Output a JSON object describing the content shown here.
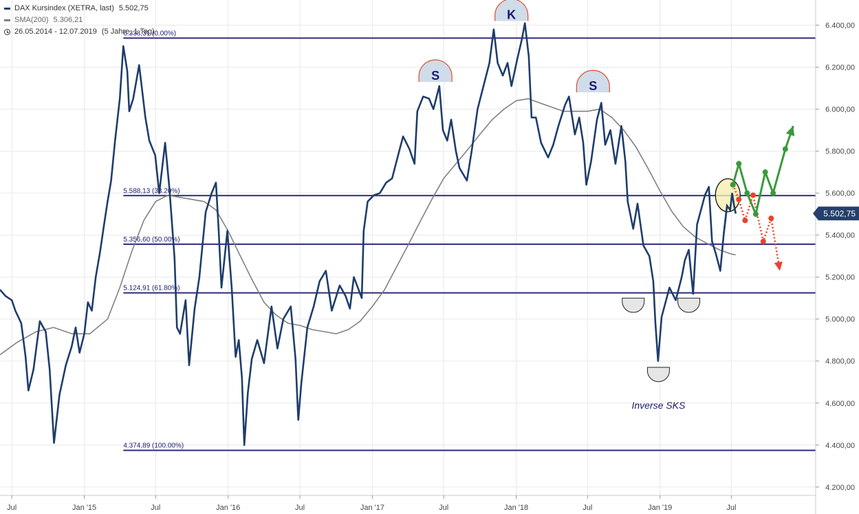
{
  "legend": {
    "main_name": "DAX Kursindex (XETRA, last)",
    "main_value": "5.502,75",
    "sma_name": "SMA(200)",
    "sma_value": "5.306,21",
    "range": "26.05.2014 - 12.07.2019",
    "range_desc": "(5 Jahre, 1 Tag)"
  },
  "colors": {
    "price": "#1f3d6b",
    "sma": "#808080",
    "fib": "#2e2a7a",
    "fib_label": "#1a1a6e",
    "grid": "#e8e8e8",
    "bull": "#3a9a3a",
    "bear": "#e8432a",
    "pattern_fill": "#cfdcea",
    "pattern_edge": "#e34a2a",
    "marker": "#1a1a6e",
    "current_box": "#24406b"
  },
  "chart_data": {
    "type": "line",
    "y_axis": {
      "range": [
        4160,
        6520
      ],
      "side": "right",
      "ticks": [
        4200,
        4400,
        4600,
        4800,
        5000,
        5200,
        5400,
        5600,
        5800,
        6000,
        6200,
        6400
      ],
      "tick_labels": [
        "4.200,00",
        "4.400,00",
        "4.600,00",
        "4.800,00",
        "5.000,00",
        "5.200,00",
        "5.400,00",
        "5.600,00",
        "5.800,00",
        "6.000,00",
        "6.200,00",
        "6.400,00"
      ]
    },
    "x_axis": {
      "range": [
        "2014-06-01",
        "2020-01-31"
      ],
      "ticks": [
        "2014-07-01",
        "2015-01-01",
        "2015-07-01",
        "2016-01-01",
        "2016-07-01",
        "2017-01-01",
        "2017-07-01",
        "2018-01-01",
        "2018-07-01",
        "2019-01-01",
        "2019-07-01"
      ],
      "tick_labels": [
        "Jul",
        "Jan '15",
        "Jul",
        "Jan '16",
        "Jul",
        "Jan '17",
        "Jul",
        "Jan '18",
        "Jul",
        "Jan '19",
        "Jul"
      ]
    },
    "grid": true,
    "current_value_label": "5.502,75",
    "series": [
      {
        "name": "DAX Kursindex (XETRA, last)",
        "points": [
          [
            "2014-06-01",
            5140
          ],
          [
            "2014-06-15",
            5110
          ],
          [
            "2014-07-01",
            5090
          ],
          [
            "2014-07-10",
            5040
          ],
          [
            "2014-07-25",
            4980
          ],
          [
            "2014-08-05",
            4820
          ],
          [
            "2014-08-12",
            4660
          ],
          [
            "2014-08-25",
            4760
          ],
          [
            "2014-09-10",
            4990
          ],
          [
            "2014-09-25",
            4940
          ],
          [
            "2014-10-05",
            4760
          ],
          [
            "2014-10-16",
            4410
          ],
          [
            "2014-10-30",
            4640
          ],
          [
            "2014-11-15",
            4780
          ],
          [
            "2014-11-30",
            4870
          ],
          [
            "2014-12-10",
            4960
          ],
          [
            "2014-12-20",
            4840
          ],
          [
            "2015-01-01",
            4930
          ],
          [
            "2015-01-10",
            5080
          ],
          [
            "2015-01-20",
            5040
          ],
          [
            "2015-01-30",
            5200
          ],
          [
            "2015-02-10",
            5320
          ],
          [
            "2015-02-20",
            5450
          ],
          [
            "2015-03-01",
            5560
          ],
          [
            "2015-03-10",
            5660
          ],
          [
            "2015-03-20",
            5850
          ],
          [
            "2015-04-01",
            6050
          ],
          [
            "2015-04-10",
            6300
          ],
          [
            "2015-04-20",
            6180
          ],
          [
            "2015-04-25",
            5990
          ],
          [
            "2015-05-05",
            6050
          ],
          [
            "2015-05-20",
            6210
          ],
          [
            "2015-06-05",
            5960
          ],
          [
            "2015-06-15",
            5850
          ],
          [
            "2015-06-30",
            5780
          ],
          [
            "2015-07-10",
            5600
          ],
          [
            "2015-07-25",
            5840
          ],
          [
            "2015-08-05",
            5620
          ],
          [
            "2015-08-18",
            5290
          ],
          [
            "2015-08-24",
            4960
          ],
          [
            "2015-09-01",
            4930
          ],
          [
            "2015-09-15",
            5090
          ],
          [
            "2015-09-24",
            4780
          ],
          [
            "2015-10-08",
            5050
          ],
          [
            "2015-10-20",
            5200
          ],
          [
            "2015-11-05",
            5510
          ],
          [
            "2015-11-20",
            5600
          ],
          [
            "2015-12-01",
            5650
          ],
          [
            "2015-12-08",
            5420
          ],
          [
            "2015-12-15",
            5150
          ],
          [
            "2015-12-30",
            5420
          ],
          [
            "2016-01-10",
            5150
          ],
          [
            "2016-01-20",
            4820
          ],
          [
            "2016-01-28",
            4900
          ],
          [
            "2016-02-05",
            4720
          ],
          [
            "2016-02-11",
            4400
          ],
          [
            "2016-02-20",
            4650
          ],
          [
            "2016-03-01",
            4810
          ],
          [
            "2016-03-15",
            4900
          ],
          [
            "2016-04-01",
            4790
          ],
          [
            "2016-04-20",
            5060
          ],
          [
            "2016-05-05",
            4860
          ],
          [
            "2016-05-20",
            5000
          ],
          [
            "2016-06-08",
            5060
          ],
          [
            "2016-06-20",
            4810
          ],
          [
            "2016-06-27",
            4520
          ],
          [
            "2016-07-05",
            4700
          ],
          [
            "2016-07-20",
            4960
          ],
          [
            "2016-08-05",
            5060
          ],
          [
            "2016-08-20",
            5180
          ],
          [
            "2016-09-05",
            5230
          ],
          [
            "2016-09-20",
            5040
          ],
          [
            "2016-10-10",
            5160
          ],
          [
            "2016-10-25",
            5110
          ],
          [
            "2016-11-05",
            5050
          ],
          [
            "2016-11-15",
            5200
          ],
          [
            "2016-12-05",
            5100
          ],
          [
            "2016-12-10",
            5420
          ],
          [
            "2016-12-20",
            5560
          ],
          [
            "2017-01-05",
            5590
          ],
          [
            "2017-01-20",
            5600
          ],
          [
            "2017-02-05",
            5650
          ],
          [
            "2017-02-20",
            5670
          ],
          [
            "2017-03-10",
            5800
          ],
          [
            "2017-03-20",
            5870
          ],
          [
            "2017-04-05",
            5810
          ],
          [
            "2017-04-18",
            5740
          ],
          [
            "2017-04-25",
            5990
          ],
          [
            "2017-05-10",
            6060
          ],
          [
            "2017-05-25",
            6050
          ],
          [
            "2017-06-05",
            6000
          ],
          [
            "2017-06-20",
            6110
          ],
          [
            "2017-06-29",
            5900
          ],
          [
            "2017-07-10",
            5850
          ],
          [
            "2017-07-20",
            5950
          ],
          [
            "2017-08-01",
            5800
          ],
          [
            "2017-08-10",
            5720
          ],
          [
            "2017-08-29",
            5660
          ],
          [
            "2017-09-10",
            5800
          ],
          [
            "2017-09-25",
            6000
          ],
          [
            "2017-10-10",
            6110
          ],
          [
            "2017-10-25",
            6220
          ],
          [
            "2017-11-05",
            6380
          ],
          [
            "2017-11-15",
            6220
          ],
          [
            "2017-11-28",
            6160
          ],
          [
            "2017-12-10",
            6220
          ],
          [
            "2017-12-20",
            6110
          ],
          [
            "2018-01-05",
            6250
          ],
          [
            "2018-01-15",
            6330
          ],
          [
            "2018-01-23",
            6410
          ],
          [
            "2018-02-02",
            6250
          ],
          [
            "2018-02-09",
            5960
          ],
          [
            "2018-02-20",
            5960
          ],
          [
            "2018-03-05",
            5840
          ],
          [
            "2018-03-23",
            5770
          ],
          [
            "2018-04-05",
            5830
          ],
          [
            "2018-04-18",
            5920
          ],
          [
            "2018-05-05",
            6020
          ],
          [
            "2018-05-15",
            6060
          ],
          [
            "2018-05-30",
            5880
          ],
          [
            "2018-06-10",
            5960
          ],
          [
            "2018-06-20",
            5840
          ],
          [
            "2018-06-28",
            5640
          ],
          [
            "2018-07-10",
            5750
          ],
          [
            "2018-07-25",
            5950
          ],
          [
            "2018-08-05",
            6030
          ],
          [
            "2018-08-15",
            5830
          ],
          [
            "2018-08-28",
            5900
          ],
          [
            "2018-09-10",
            5740
          ],
          [
            "2018-09-25",
            5920
          ],
          [
            "2018-10-05",
            5750
          ],
          [
            "2018-10-11",
            5560
          ],
          [
            "2018-10-25",
            5430
          ],
          [
            "2018-11-05",
            5550
          ],
          [
            "2018-11-20",
            5350
          ],
          [
            "2018-12-05",
            5300
          ],
          [
            "2018-12-15",
            5180
          ],
          [
            "2018-12-20",
            4990
          ],
          [
            "2018-12-27",
            4800
          ],
          [
            "2019-01-05",
            5010
          ],
          [
            "2019-01-15",
            5080
          ],
          [
            "2019-01-25",
            5150
          ],
          [
            "2019-02-10",
            5090
          ],
          [
            "2019-02-25",
            5200
          ],
          [
            "2019-03-05",
            5280
          ],
          [
            "2019-03-15",
            5330
          ],
          [
            "2019-03-26",
            5120
          ],
          [
            "2019-04-05",
            5450
          ],
          [
            "2019-04-25",
            5590
          ],
          [
            "2019-05-05",
            5630
          ],
          [
            "2019-05-13",
            5370
          ],
          [
            "2019-05-23",
            5310
          ],
          [
            "2019-06-03",
            5230
          ],
          [
            "2019-06-12",
            5410
          ],
          [
            "2019-06-20",
            5540
          ],
          [
            "2019-06-28",
            5520
          ],
          [
            "2019-07-03",
            5600
          ],
          [
            "2019-07-08",
            5540
          ],
          [
            "2019-07-12",
            5503
          ]
        ]
      },
      {
        "name": "SMA(200)",
        "points": [
          [
            "2014-06-01",
            4830
          ],
          [
            "2014-07-15",
            4890
          ],
          [
            "2014-09-01",
            4940
          ],
          [
            "2014-10-15",
            4960
          ],
          [
            "2014-12-01",
            4930
          ],
          [
            "2015-01-15",
            4930
          ],
          [
            "2015-03-01",
            5000
          ],
          [
            "2015-04-01",
            5150
          ],
          [
            "2015-05-01",
            5320
          ],
          [
            "2015-06-01",
            5470
          ],
          [
            "2015-07-01",
            5560
          ],
          [
            "2015-08-01",
            5590
          ],
          [
            "2015-09-01",
            5580
          ],
          [
            "2015-10-01",
            5570
          ],
          [
            "2015-11-01",
            5560
          ],
          [
            "2015-12-01",
            5520
          ],
          [
            "2016-01-01",
            5420
          ],
          [
            "2016-02-01",
            5300
          ],
          [
            "2016-03-01",
            5190
          ],
          [
            "2016-04-01",
            5080
          ],
          [
            "2016-05-01",
            5020
          ],
          [
            "2016-06-01",
            4980
          ],
          [
            "2016-07-01",
            4970
          ],
          [
            "2016-08-01",
            4950
          ],
          [
            "2016-09-01",
            4940
          ],
          [
            "2016-10-01",
            4930
          ],
          [
            "2016-11-01",
            4950
          ],
          [
            "2016-12-01",
            4990
          ],
          [
            "2017-01-01",
            5060
          ],
          [
            "2017-02-01",
            5140
          ],
          [
            "2017-03-01",
            5240
          ],
          [
            "2017-04-01",
            5350
          ],
          [
            "2017-05-01",
            5460
          ],
          [
            "2017-06-01",
            5570
          ],
          [
            "2017-07-01",
            5670
          ],
          [
            "2017-08-01",
            5740
          ],
          [
            "2017-09-01",
            5810
          ],
          [
            "2017-10-01",
            5880
          ],
          [
            "2017-11-01",
            5950
          ],
          [
            "2017-12-01",
            6000
          ],
          [
            "2018-01-01",
            6040
          ],
          [
            "2018-02-01",
            6050
          ],
          [
            "2018-03-01",
            6030
          ],
          [
            "2018-04-01",
            6010
          ],
          [
            "2018-05-01",
            5990
          ],
          [
            "2018-06-01",
            5990
          ],
          [
            "2018-07-01",
            5990
          ],
          [
            "2018-08-01",
            6000
          ],
          [
            "2018-09-01",
            5960
          ],
          [
            "2018-10-01",
            5900
          ],
          [
            "2018-11-01",
            5820
          ],
          [
            "2018-12-01",
            5720
          ],
          [
            "2019-01-01",
            5610
          ],
          [
            "2019-02-01",
            5510
          ],
          [
            "2019-03-01",
            5440
          ],
          [
            "2019-04-01",
            5390
          ],
          [
            "2019-05-01",
            5360
          ],
          [
            "2019-06-01",
            5330
          ],
          [
            "2019-07-01",
            5310
          ],
          [
            "2019-07-12",
            5306
          ]
        ]
      }
    ],
    "fibonacci_levels": [
      {
        "value": 6338.31,
        "label": "6.338,31 (0.00%)"
      },
      {
        "value": 5588.13,
        "label": "5.588,13 (38.20%)"
      },
      {
        "value": 5356.6,
        "label": "5.356,60 (50.00%)"
      },
      {
        "value": 5124.91,
        "label": "5.124,91 (61.80%)"
      },
      {
        "value": 4374.89,
        "label": "4.374,89 (100.00%)"
      }
    ],
    "fib_start": "2015-04-10",
    "annotations": {
      "top_markers": [
        {
          "letter": "S",
          "date": "2017-06-10",
          "value": 6130
        },
        {
          "letter": "K",
          "date": "2017-12-20",
          "value": 6420
        },
        {
          "letter": "S",
          "date": "2018-07-15",
          "value": 6080
        }
      ],
      "bottom_markers": [
        {
          "date": "2018-10-25",
          "value": 5100,
          "size": "small"
        },
        {
          "date": "2018-12-28",
          "value": 4770,
          "size": "large"
        },
        {
          "date": "2019-03-15",
          "value": 5100,
          "size": "small"
        }
      ],
      "pattern_label": "Inverse SKS",
      "pattern_label_pos": {
        "date": "2018-12-28",
        "value": 4600
      },
      "highlight": {
        "date": "2019-06-22",
        "value": 5590
      },
      "bull_path": [
        [
          "2019-07-05",
          5640
        ],
        [
          "2019-07-20",
          5740
        ],
        [
          "2019-08-10",
          5600
        ],
        [
          "2019-09-01",
          5500
        ],
        [
          "2019-09-25",
          5700
        ],
        [
          "2019-10-15",
          5600
        ],
        [
          "2019-11-15",
          5810
        ],
        [
          "2019-12-05",
          5920
        ]
      ],
      "bear_path": [
        [
          "2019-07-05",
          5640
        ],
        [
          "2019-07-20",
          5570
        ],
        [
          "2019-08-05",
          5470
        ],
        [
          "2019-08-25",
          5590
        ],
        [
          "2019-09-20",
          5370
        ],
        [
          "2019-10-10",
          5480
        ],
        [
          "2019-11-01",
          5230
        ]
      ]
    }
  }
}
